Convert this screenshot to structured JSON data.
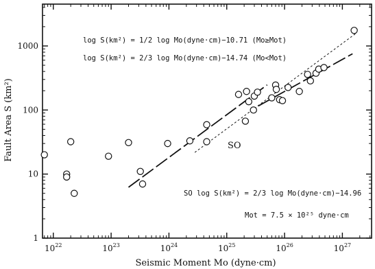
{
  "chart_data": {
    "type": "scatter",
    "xlabel": "Seismic Moment Mo (dyne·cm)",
    "ylabel": "Fault Area S (km²)",
    "x_scale": "log",
    "y_scale": "log",
    "xlim": [
      6.5e+21,
      3.2e+27
    ],
    "ylim": [
      1,
      4500
    ],
    "x_ticks": [
      {
        "value": 1e+22,
        "base": "10",
        "exp": "22"
      },
      {
        "value": 1e+23,
        "base": "10",
        "exp": "23"
      },
      {
        "value": 1e+24,
        "base": "10",
        "exp": "24"
      },
      {
        "value": 1e+25,
        "base": "10",
        "exp": "25"
      },
      {
        "value": 1e+26,
        "base": "10",
        "exp": "26"
      },
      {
        "value": 1e+27,
        "base": "10",
        "exp": "27"
      }
    ],
    "y_ticks": [
      {
        "value": 1,
        "label": "1"
      },
      {
        "value": 10,
        "label": "10"
      },
      {
        "value": 100,
        "label": "100"
      },
      {
        "value": 1000,
        "label": "1000"
      }
    ],
    "grid": false,
    "points": [
      {
        "x": 7e+21,
        "y": 20
      },
      {
        "x": 1.7e+22,
        "y": 10
      },
      {
        "x": 1.7e+22,
        "y": 9
      },
      {
        "x": 2e+22,
        "y": 32
      },
      {
        "x": 2.3e+22,
        "y": 5
      },
      {
        "x": 9e+22,
        "y": 19
      },
      {
        "x": 2e+23,
        "y": 31
      },
      {
        "x": 3.2e+23,
        "y": 11
      },
      {
        "x": 3.5e+23,
        "y": 7
      },
      {
        "x": 9.5e+23,
        "y": 30
      },
      {
        "x": 2.3e+24,
        "y": 33
      },
      {
        "x": 4.5e+24,
        "y": 59
      },
      {
        "x": 4.5e+24,
        "y": 32
      },
      {
        "x": 1.6e+25,
        "y": 175
      },
      {
        "x": 2.1e+25,
        "y": 67
      },
      {
        "x": 2.2e+25,
        "y": 195
      },
      {
        "x": 2.4e+25,
        "y": 135
      },
      {
        "x": 2.9e+25,
        "y": 100
      },
      {
        "x": 3e+25,
        "y": 165
      },
      {
        "x": 3.4e+25,
        "y": 190
      },
      {
        "x": 6e+25,
        "y": 155
      },
      {
        "x": 7e+25,
        "y": 245
      },
      {
        "x": 7.2e+25,
        "y": 210
      },
      {
        "x": 8.2e+25,
        "y": 145
      },
      {
        "x": 9.2e+25,
        "y": 140
      },
      {
        "x": 1.15e+26,
        "y": 225
      },
      {
        "x": 1.8e+26,
        "y": 195
      },
      {
        "x": 2.5e+26,
        "y": 360
      },
      {
        "x": 2.8e+26,
        "y": 285
      },
      {
        "x": 3.5e+26,
        "y": 375
      },
      {
        "x": 3.9e+26,
        "y": 435
      },
      {
        "x": 4.8e+26,
        "y": 460
      },
      {
        "x": 1.6e+27,
        "y": 1750
      }
    ],
    "lines": [
      {
        "id": "fit-small",
        "style": "long-dash",
        "equation": "log S = 2/3 log Mo − 14.74",
        "x_range": [
          2e+23,
          5e+25
        ]
      },
      {
        "id": "fit-large",
        "style": "long-dash",
        "equation": "log S = 1/2 log Mo − 10.71",
        "x_range": [
          3.5e+25,
          1.5e+27
        ]
      },
      {
        "id": "fit-so",
        "style": "short-dash",
        "equation": "log S = 2/3 log Mo − 14.96",
        "x_range": [
          2.8e+24,
          1.7e+27
        ]
      }
    ],
    "annotations": {
      "eq_large": "log S(km²) = 1/2 log Mo(dyne·cm)−10.71  (Mo≥Mot)",
      "eq_small": "log S(km²) = 2/3 log Mo(dyne·cm)−14.74  (Mo<Mot)",
      "so_label": "SO",
      "eq_so": "SO  log S(km²) = 2/3 log Mo(dyne·cm)−14.96",
      "mot": "Mot = 7.5 × 10²⁵ dyne·cm"
    }
  }
}
